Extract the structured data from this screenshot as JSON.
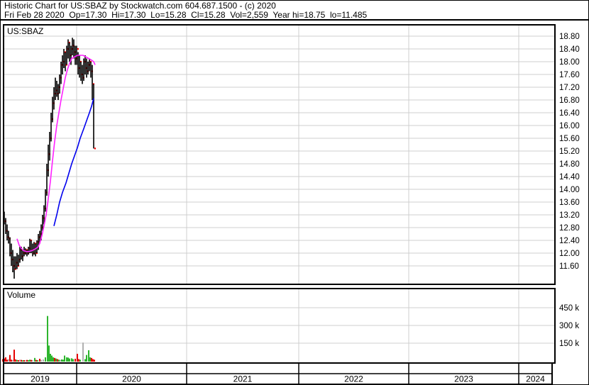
{
  "header": {
    "line1": "Historic Chart for US:SBAZ by Stockwatch.com 604.687.1500 - (c) 2020",
    "line2": "Fri Feb 28 2020  Op=17.30  Hi=17.30  Lo=15.28  Cl=15.28  Vol=2,559  Year hi=18.75  lo=11.485"
  },
  "price_panel": {
    "label": "US:SBAZ"
  },
  "volume_panel": {
    "label": "Volume"
  },
  "colors": {
    "grid": "#cfcfcf",
    "frame": "#000000",
    "ohlc_bar": "#000000",
    "close_tick": "#ff0000",
    "ma_short": "#ff22ff",
    "ma_long": "#0000ee",
    "vol_up": "#2eb52e",
    "vol_down": "#e60000",
    "vol_neutral": "#b0b0b0"
  },
  "chart_data": {
    "type": "candlestick",
    "title": "Historic Chart for US:SBAZ",
    "last_quote": {
      "date": "Fri Feb 28 2020",
      "open": 17.3,
      "high": 17.3,
      "low": 15.28,
      "close": 15.28,
      "volume": "2,559",
      "year_high": 18.75,
      "year_low": 11.485
    },
    "price_axis": {
      "position": "right",
      "ticks": [
        "18.80",
        "18.40",
        "18.00",
        "17.60",
        "17.20",
        "16.80",
        "16.40",
        "16.00",
        "15.60",
        "15.20",
        "14.80",
        "14.40",
        "14.00",
        "13.60",
        "13.20",
        "12.80",
        "12.40",
        "12.00",
        "11.60"
      ],
      "step": 0.4
    },
    "volume_axis": {
      "position": "right",
      "ticks": [
        "450 k",
        "300 k",
        "150 k"
      ],
      "values_k": [
        450,
        300,
        150
      ]
    },
    "x_axis": {
      "years": [
        "2019",
        "2020",
        "2021",
        "2022",
        "2023",
        "2024"
      ]
    },
    "sampling_note": "OHLC bars, moving averages and volumes approximated from pixels at ~weekly resolution; x = horizontal position (px) on the time axis, prices in $, volume in thousands of shares",
    "bars": [
      [
        5,
        13.3,
        12.9,
        13.0
      ],
      [
        7,
        13.1,
        12.6,
        12.7
      ],
      [
        9,
        12.9,
        12.4,
        12.5
      ],
      [
        11,
        12.7,
        12.3,
        12.45
      ],
      [
        13,
        12.5,
        11.9,
        12.0
      ],
      [
        15,
        12.3,
        11.6,
        11.8
      ],
      [
        17,
        12.1,
        11.4,
        11.6
      ],
      [
        19,
        11.9,
        11.2,
        11.5
      ],
      [
        21,
        11.9,
        11.5,
        11.7
      ],
      [
        23,
        12.0,
        11.5,
        11.6
      ],
      [
        25,
        11.95,
        11.6,
        11.8
      ],
      [
        27,
        12.2,
        11.7,
        12.1
      ],
      [
        29,
        12.2,
        11.8,
        11.9
      ],
      [
        31,
        12.1,
        11.75,
        12.0
      ],
      [
        33,
        12.2,
        11.9,
        12.0
      ],
      [
        35,
        12.15,
        11.95,
        12.1
      ],
      [
        37,
        12.1,
        11.9,
        12.0
      ],
      [
        39,
        12.2,
        11.95,
        12.15
      ],
      [
        41,
        12.45,
        12.0,
        12.4
      ],
      [
        43,
        12.4,
        12.0,
        12.1
      ],
      [
        45,
        12.3,
        11.9,
        12.0
      ],
      [
        47,
        12.35,
        11.95,
        12.3
      ],
      [
        49,
        12.3,
        11.9,
        12.0
      ],
      [
        51,
        12.4,
        12.0,
        12.35
      ],
      [
        53,
        12.6,
        12.1,
        12.5
      ],
      [
        55,
        12.7,
        12.3,
        12.6
      ],
      [
        57,
        12.9,
        12.4,
        12.8
      ],
      [
        59,
        13.2,
        12.7,
        13.1
      ],
      [
        61,
        13.5,
        12.9,
        13.4
      ],
      [
        63,
        14.0,
        13.3,
        13.9
      ],
      [
        65,
        14.8,
        13.8,
        14.6
      ],
      [
        67,
        15.4,
        14.4,
        15.1
      ],
      [
        69,
        15.8,
        14.9,
        15.6
      ],
      [
        71,
        16.4,
        15.5,
        16.2
      ],
      [
        73,
        16.9,
        16.1,
        16.7
      ],
      [
        75,
        17.2,
        16.5,
        17.0
      ],
      [
        77,
        17.5,
        16.8,
        17.1
      ],
      [
        79,
        17.4,
        16.9,
        17.0
      ],
      [
        81,
        17.3,
        16.8,
        17.2
      ],
      [
        83,
        17.6,
        17.0,
        17.5
      ],
      [
        85,
        18.0,
        17.3,
        17.9
      ],
      [
        87,
        18.2,
        17.6,
        18.0
      ],
      [
        89,
        18.4,
        17.8,
        18.3
      ],
      [
        91,
        18.3,
        17.7,
        17.9
      ],
      [
        93,
        18.5,
        17.9,
        18.4
      ],
      [
        95,
        18.7,
        18.1,
        18.6
      ],
      [
        97,
        18.6,
        18.0,
        18.2
      ],
      [
        99,
        18.5,
        17.9,
        18.4
      ],
      [
        101,
        18.75,
        18.2,
        18.5
      ],
      [
        103,
        18.7,
        18.1,
        18.3
      ],
      [
        105,
        18.5,
        17.9,
        18.1
      ],
      [
        107,
        18.5,
        17.9,
        18.4
      ],
      [
        109,
        18.3,
        17.6,
        17.8
      ],
      [
        111,
        18.2,
        17.5,
        18.0
      ],
      [
        113,
        18.0,
        17.4,
        17.6
      ],
      [
        115,
        17.9,
        17.3,
        17.5
      ],
      [
        117,
        18.1,
        17.4,
        18.0
      ],
      [
        119,
        18.2,
        17.6,
        17.8
      ],
      [
        121,
        18.1,
        17.5,
        17.7
      ],
      [
        123,
        18.0,
        17.6,
        17.9
      ],
      [
        125,
        18.1,
        17.7,
        18.0
      ],
      [
        127,
        18.0,
        17.5,
        17.7
      ],
      [
        129,
        17.9,
        16.8,
        17.3
      ],
      [
        131,
        17.3,
        15.28,
        15.28
      ]
    ],
    "ma_short_points": [
      [
        23,
        12.45
      ],
      [
        26,
        12.25
      ],
      [
        29,
        12.15
      ],
      [
        32,
        12.08
      ],
      [
        36,
        12.05
      ],
      [
        40,
        12.05
      ],
      [
        44,
        12.08
      ],
      [
        48,
        12.12
      ],
      [
        52,
        12.18
      ],
      [
        55,
        12.3
      ],
      [
        58,
        12.55
      ],
      [
        61,
        12.85
      ],
      [
        64,
        13.2
      ],
      [
        67,
        13.7
      ],
      [
        70,
        14.25
      ],
      [
        73,
        14.9
      ],
      [
        76,
        15.5
      ],
      [
        79,
        16.0
      ],
      [
        82,
        16.4
      ],
      [
        85,
        16.8
      ],
      [
        88,
        17.15
      ],
      [
        91,
        17.5
      ],
      [
        94,
        17.75
      ],
      [
        97,
        17.95
      ],
      [
        100,
        18.1
      ],
      [
        104,
        18.15
      ],
      [
        108,
        18.2
      ],
      [
        112,
        18.2
      ],
      [
        116,
        18.2
      ],
      [
        120,
        18.15
      ],
      [
        124,
        18.1
      ],
      [
        128,
        18.05
      ],
      [
        131,
        18.0
      ],
      [
        133,
        17.9
      ]
    ],
    "ma_long_points": [
      [
        75,
        12.85
      ],
      [
        79,
        13.2
      ],
      [
        83,
        13.6
      ],
      [
        87,
        13.9
      ],
      [
        92,
        14.2
      ],
      [
        96,
        14.5
      ],
      [
        100,
        14.8
      ],
      [
        104,
        15.05
      ],
      [
        108,
        15.3
      ],
      [
        112,
        15.6
      ],
      [
        117,
        15.9
      ],
      [
        121,
        16.15
      ],
      [
        125,
        16.4
      ],
      [
        128,
        16.6
      ],
      [
        131,
        16.85
      ]
    ],
    "volume_bars": [
      [
        3,
        15,
        "down"
      ],
      [
        5,
        20,
        "down"
      ],
      [
        7,
        30,
        "down"
      ],
      [
        9,
        10,
        "down"
      ],
      [
        11,
        15,
        "neutral"
      ],
      [
        13,
        50,
        "down"
      ],
      [
        15,
        10,
        "down"
      ],
      [
        17,
        8,
        "neutral"
      ],
      [
        19,
        95,
        "down"
      ],
      [
        21,
        12,
        "down"
      ],
      [
        23,
        8,
        "up"
      ],
      [
        25,
        6,
        "down"
      ],
      [
        27,
        10,
        "neutral"
      ],
      [
        29,
        8,
        "down"
      ],
      [
        31,
        5,
        "up"
      ],
      [
        33,
        6,
        "down"
      ],
      [
        35,
        5,
        "neutral"
      ],
      [
        37,
        8,
        "down"
      ],
      [
        39,
        6,
        "up"
      ],
      [
        41,
        10,
        "up"
      ],
      [
        43,
        8,
        "down"
      ],
      [
        45,
        6,
        "neutral"
      ],
      [
        48,
        25,
        "up"
      ],
      [
        50,
        8,
        "down"
      ],
      [
        52,
        6,
        "up"
      ],
      [
        55,
        18,
        "down"
      ],
      [
        57,
        8,
        "neutral"
      ],
      [
        60,
        12,
        "neutral"
      ],
      [
        63,
        30,
        "up"
      ],
      [
        66,
        380,
        "up"
      ],
      [
        68,
        130,
        "up"
      ],
      [
        70,
        60,
        "up"
      ],
      [
        72,
        45,
        "up"
      ],
      [
        74,
        30,
        "up"
      ],
      [
        76,
        25,
        "down"
      ],
      [
        78,
        20,
        "up"
      ],
      [
        80,
        15,
        "down"
      ],
      [
        82,
        10,
        "up"
      ],
      [
        84,
        8,
        "neutral"
      ],
      [
        86,
        12,
        "up"
      ],
      [
        88,
        10,
        "up"
      ],
      [
        90,
        45,
        "up"
      ],
      [
        93,
        30,
        "up"
      ],
      [
        95,
        28,
        "up"
      ],
      [
        97,
        20,
        "up"
      ],
      [
        100,
        22,
        "up"
      ],
      [
        102,
        15,
        "up"
      ],
      [
        105,
        18,
        "down"
      ],
      [
        108,
        60,
        "down"
      ],
      [
        110,
        15,
        "down"
      ],
      [
        112,
        10,
        "up"
      ],
      [
        116,
        155,
        "neutral"
      ],
      [
        119,
        15,
        "up"
      ],
      [
        121,
        50,
        "up"
      ],
      [
        124,
        90,
        "up"
      ],
      [
        126,
        30,
        "up"
      ],
      [
        128,
        25,
        "down"
      ],
      [
        130,
        15,
        "down"
      ],
      [
        132,
        10,
        "down"
      ]
    ]
  }
}
